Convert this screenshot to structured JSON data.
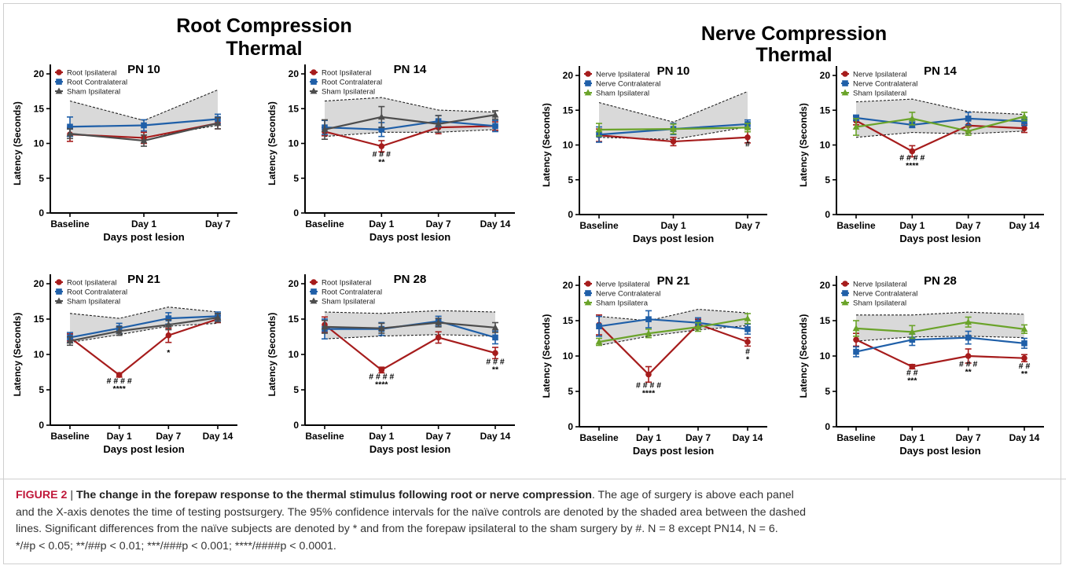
{
  "group_titles": [
    {
      "line1": "Root Compression",
      "line2": "Thermal"
    },
    {
      "line1": "Nerve Compression",
      "line2": "Thermal"
    }
  ],
  "colors": {
    "red": "#a61c1c",
    "blue": "#1f5fa8",
    "gray": "#4d4d4d",
    "green": "#6aa329",
    "band": "#d9d9d9"
  },
  "caption": {
    "lead": "FIGURE 2",
    "sep": " | ",
    "title": "The change in the forepaw response to the thermal stimulus following root or nerve compression",
    "line1_rest": ". The age of surgery is above each panel",
    "line2": "and the X-axis denotes the time of testing postsurgery. The 95% confidence intervals for the naïve controls are denoted by the shaded area between the dashed",
    "line3": "lines. Significant differences from the naïve subjects are denoted by * and from the forepaw ipsilateral to the sham surgery by #. N = 8 except PN14, N = 6.",
    "line4": "*/#p < 0.05; **/##p < 0.01; ***/###p < 0.001; ****/####p < 0.0001."
  },
  "chart_data": [
    {
      "type": "line",
      "title": "PN 10",
      "xlabel": "Days post lesion",
      "ylabel": "Latency (Seconds)",
      "ylim": [
        0,
        20
      ],
      "yticks": [
        0,
        5,
        10,
        15,
        20
      ],
      "categories": [
        "Baseline",
        "Day 1",
        "Day 7"
      ],
      "series": [
        {
          "name": "Root Ipsilateral",
          "color": "red",
          "marker": "circle",
          "values": [
            11.3,
            10.8,
            12.9
          ],
          "err": [
            1.0,
            0.8,
            0.8
          ]
        },
        {
          "name": "Root Contralateral",
          "color": "blue",
          "marker": "square",
          "values": [
            12.4,
            12.6,
            13.5
          ],
          "err": [
            1.4,
            0.8,
            0.7
          ]
        },
        {
          "name": "Sham Ipsilateral",
          "color": "gray",
          "marker": "triangle",
          "values": [
            11.4,
            10.4,
            12.9
          ],
          "err": [
            0.7,
            0.8,
            0.8
          ]
        }
      ],
      "band": {
        "upper": [
          16.1,
          13.3,
          17.7
        ],
        "lower": [
          11.3,
          10.8,
          12.6
        ]
      },
      "annotations": []
    },
    {
      "type": "line",
      "title": "PN 14",
      "xlabel": "Days post lesion",
      "ylabel": "Latency (Seconds)",
      "ylim": [
        0,
        20
      ],
      "yticks": [
        0,
        5,
        10,
        15,
        20
      ],
      "categories": [
        "Baseline",
        "Day 1",
        "Day 7",
        "Day 14"
      ],
      "series": [
        {
          "name": "Root Ipsilateral",
          "color": "red",
          "marker": "circle",
          "values": [
            11.7,
            9.6,
            12.3,
            12.5
          ],
          "err": [
            0.6,
            0.8,
            0.9,
            0.6
          ]
        },
        {
          "name": "Root Contralateral",
          "color": "blue",
          "marker": "square",
          "values": [
            12.3,
            12.0,
            13.2,
            12.5
          ],
          "err": [
            1.0,
            1.0,
            0.8,
            0.8
          ]
        },
        {
          "name": "Sham Ipsilateral",
          "color": "gray",
          "marker": "triangle",
          "values": [
            12.0,
            13.8,
            12.8,
            14.1
          ],
          "err": [
            1.4,
            1.5,
            1.2,
            0.6
          ]
        }
      ],
      "band": {
        "upper": [
          16.1,
          16.6,
          14.8,
          14.5
        ],
        "lower": [
          11.0,
          11.6,
          11.6,
          12.0
        ]
      },
      "annotations": [
        {
          "x": "Day 1",
          "y": 8.1,
          "l1": "# # #",
          "l2": "**"
        }
      ]
    },
    {
      "type": "line",
      "title": "PN 10",
      "xlabel": "Days post lesion",
      "ylabel": "Latency (Seconds)",
      "ylim": [
        0,
        20
      ],
      "yticks": [
        0,
        5,
        10,
        15,
        20
      ],
      "categories": [
        "Baseline",
        "Day 1",
        "Day 7"
      ],
      "series": [
        {
          "name": "Nerve Ipsilateral",
          "color": "red",
          "marker": "circle",
          "values": [
            11.4,
            10.5,
            11.1
          ],
          "err": [
            0.9,
            0.6,
            0.8
          ]
        },
        {
          "name": "Nerve Contralateral",
          "color": "blue",
          "marker": "square",
          "values": [
            11.5,
            12.3,
            13.0
          ],
          "err": [
            1.1,
            0.8,
            0.6
          ]
        },
        {
          "name": "Sham Ipsilateral",
          "color": "green",
          "marker": "triangle",
          "values": [
            12.2,
            12.3,
            12.5
          ],
          "err": [
            0.9,
            0.7,
            0.6
          ]
        }
      ],
      "band": {
        "upper": [
          16.1,
          13.3,
          17.7
        ],
        "lower": [
          11.1,
          10.8,
          12.6
        ]
      },
      "annotations": [
        {
          "x": "Day 7",
          "y": 9.8,
          "l1": "#",
          "l2": ""
        }
      ]
    },
    {
      "type": "line",
      "title": "PN 14",
      "xlabel": "Days post lesion",
      "ylabel": "Latency (Seconds)",
      "ylim": [
        0,
        20
      ],
      "yticks": [
        0,
        5,
        10,
        15,
        20
      ],
      "categories": [
        "Baseline",
        "Day 1",
        "Day 7",
        "Day 14"
      ],
      "series": [
        {
          "name": "Nerve Ipsilateral",
          "color": "red",
          "marker": "circle",
          "values": [
            13.5,
            9.1,
            12.8,
            12.4
          ],
          "err": [
            0.6,
            0.8,
            0.8,
            0.6
          ]
        },
        {
          "name": "Nerve  Contralateral",
          "color": "blue",
          "marker": "square",
          "values": [
            13.9,
            12.9,
            13.8,
            13.4
          ],
          "err": [
            0.4,
            0.4,
            0.9,
            0.6
          ]
        },
        {
          "name": "Sham Ipsilateral",
          "color": "green",
          "marker": "triangle",
          "values": [
            12.6,
            13.8,
            12.0,
            14.1
          ],
          "err": [
            1.2,
            0.9,
            0.6,
            0.6
          ]
        }
      ],
      "band": {
        "upper": [
          16.2,
          16.6,
          14.8,
          14.4
        ],
        "lower": [
          11.1,
          11.8,
          11.6,
          12.0
        ]
      },
      "annotations": [
        {
          "x": "Day 1",
          "y": 7.8,
          "l1": "# # # #",
          "l2": "****"
        }
      ]
    },
    {
      "type": "line",
      "title": "PN 21",
      "xlabel": "Days post lesion",
      "ylabel": "Latency (Seconds)",
      "ylim": [
        0,
        20
      ],
      "yticks": [
        0,
        5,
        10,
        15,
        20
      ],
      "categories": [
        "Baseline",
        "Day 1",
        "Day 7",
        "Day 14"
      ],
      "series": [
        {
          "name": "Root Ipsilateral",
          "color": "red",
          "marker": "circle",
          "values": [
            12.4,
            7.1,
            12.7,
            15.0
          ],
          "err": [
            0.5,
            0.3,
            1.0,
            0.5
          ]
        },
        {
          "name": "Root Contralateral",
          "color": "blue",
          "marker": "square",
          "values": [
            12.4,
            13.7,
            15.1,
            15.4
          ],
          "err": [
            0.7,
            0.7,
            0.8,
            0.6
          ]
        },
        {
          "name": "Sham Ipsilateral",
          "color": "gray",
          "marker": "triangle",
          "values": [
            11.9,
            13.3,
            14.2,
            15.2
          ],
          "err": [
            0.6,
            0.6,
            0.7,
            0.6
          ]
        }
      ],
      "band": {
        "upper": [
          15.8,
          15.1,
          16.7,
          16.0
        ],
        "lower": [
          11.7,
          12.8,
          14.0,
          14.4
        ]
      },
      "annotations": [
        {
          "x": "Day 1",
          "y": 5.9,
          "l1": "# # # #",
          "l2": "****"
        },
        {
          "x": "Day 7",
          "y": 11.0,
          "l1": "",
          "l2": "*"
        }
      ]
    },
    {
      "type": "line",
      "title": "PN 28",
      "xlabel": "Days post lesion",
      "ylabel": "Latency (Seconds)",
      "ylim": [
        0,
        20
      ],
      "yticks": [
        0,
        5,
        10,
        15,
        20
      ],
      "categories": [
        "Baseline",
        "Day 1",
        "Day 7",
        "Day 14"
      ],
      "series": [
        {
          "name": "Root Ipsilateral",
          "color": "red",
          "marker": "circle",
          "values": [
            14.2,
            7.8,
            12.4,
            10.2
          ],
          "err": [
            1.1,
            0.4,
            0.8,
            0.8
          ]
        },
        {
          "name": "Root Contralateral",
          "color": "blue",
          "marker": "square",
          "values": [
            13.6,
            13.6,
            14.7,
            12.4
          ],
          "err": [
            1.4,
            0.9,
            0.7,
            0.9
          ]
        },
        {
          "name": "Sham Ipsilateral",
          "color": "gray",
          "marker": "triangle",
          "values": [
            13.9,
            13.7,
            14.5,
            13.8
          ],
          "err": [
            0.9,
            0.7,
            0.6,
            0.7
          ]
        }
      ],
      "band": {
        "upper": [
          16.0,
          15.8,
          16.2,
          16.0
        ],
        "lower": [
          12.2,
          12.6,
          12.8,
          12.6
        ]
      },
      "annotations": [
        {
          "x": "Day 1",
          "y": 6.5,
          "l1": "# # # #",
          "l2": "****"
        },
        {
          "x": "Day 14",
          "y": 8.6,
          "l1": "# # #",
          "l2": "**"
        }
      ]
    },
    {
      "type": "line",
      "title": "PN 21",
      "xlabel": "Days post lesion",
      "ylabel": "Latency (Seconds)",
      "ylim": [
        0,
        20
      ],
      "yticks": [
        0,
        5,
        10,
        15,
        20
      ],
      "categories": [
        "Baseline",
        "Day 1",
        "Day 7",
        "Day 14"
      ],
      "series": [
        {
          "name": "Nerve Ipsilateral",
          "color": "red",
          "marker": "circle",
          "values": [
            14.4,
            7.4,
            14.5,
            12.0
          ],
          "err": [
            1.4,
            1.1,
            0.7,
            0.6
          ]
        },
        {
          "name": "Nerve Contralateral",
          "color": "blue",
          "marker": "square",
          "values": [
            14.2,
            15.2,
            14.7,
            13.8
          ],
          "err": [
            1.4,
            1.2,
            0.7,
            0.7
          ]
        },
        {
          "name": "Sham Ipsilatera",
          "color": "green",
          "marker": "triangle",
          "values": [
            12.0,
            13.2,
            14.1,
            15.3
          ],
          "err": [
            0.5,
            0.6,
            0.6,
            0.7
          ]
        }
      ],
      "band": {
        "upper": [
          15.6,
          15.0,
          16.6,
          16.1
        ],
        "lower": [
          11.5,
          12.8,
          13.7,
          14.3
        ]
      },
      "annotations": [
        {
          "x": "Day 1",
          "y": 5.5,
          "l1": "# # # #",
          "l2": "****"
        },
        {
          "x": "Day 14",
          "y": 10.3,
          "l1": "#",
          "l2": "*"
        }
      ]
    },
    {
      "type": "line",
      "title": "PN 28",
      "xlabel": "Days post lesion",
      "ylabel": "Latency (Seconds)",
      "ylim": [
        0,
        20
      ],
      "yticks": [
        0,
        5,
        10,
        15,
        20
      ],
      "categories": [
        "Baseline",
        "Day 1",
        "Day 7",
        "Day 14"
      ],
      "series": [
        {
          "name": "Nerve Ipsilateral",
          "color": "red",
          "marker": "circle",
          "values": [
            12.3,
            8.5,
            10.0,
            9.7
          ],
          "err": [
            0.9,
            0.3,
            1.0,
            0.5
          ]
        },
        {
          "name": "Nerve Contralateral",
          "color": "blue",
          "marker": "square",
          "values": [
            10.6,
            12.3,
            12.6,
            11.8
          ],
          "err": [
            0.7,
            0.8,
            0.9,
            0.7
          ]
        },
        {
          "name": "Sham Ipsilateral",
          "color": "green",
          "marker": "triangle",
          "values": [
            13.9,
            13.4,
            14.8,
            13.8
          ],
          "err": [
            1.1,
            0.9,
            0.7,
            0.6
          ]
        }
      ],
      "band": {
        "upper": [
          15.8,
          15.8,
          16.2,
          15.9
        ],
        "lower": [
          12.1,
          12.7,
          12.8,
          12.6
        ]
      },
      "annotations": [
        {
          "x": "Day 1",
          "y": 7.3,
          "l1": "# #",
          "l2": "***"
        },
        {
          "x": "Day 7",
          "y": 8.5,
          "l1": "# # #",
          "l2": "**"
        },
        {
          "x": "Day 14",
          "y": 8.2,
          "l1": "# #",
          "l2": "**"
        }
      ]
    }
  ]
}
